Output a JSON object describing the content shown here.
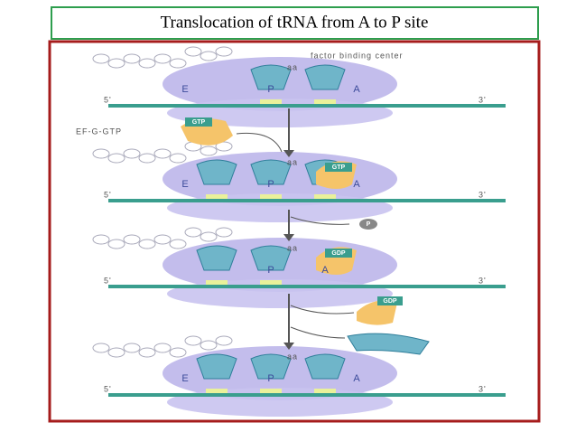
{
  "title": "Translocation of tRNA from A to P site",
  "factor_label": "factor binding center",
  "ef_g_gtp": "EF-G-GTP",
  "gtp_free": "GTP",
  "stages": [
    {
      "aa": "aa",
      "sites": [
        "E",
        "P",
        "A"
      ],
      "five": "5'",
      "three": "3'"
    },
    {
      "aa": "aa",
      "sites": [
        "E",
        "P",
        "A"
      ],
      "five": "5'",
      "three": "3'",
      "chip": "GTP"
    },
    {
      "aa": "aa",
      "sites": [
        "P",
        "A"
      ],
      "five": "5'",
      "three": "3'",
      "chip": "GDP"
    },
    {
      "aa": "aa",
      "sites": [
        "E",
        "P",
        "A"
      ],
      "five": "5'",
      "three": "3'"
    }
  ],
  "released_p": "P",
  "released_gdp": "GDP"
}
